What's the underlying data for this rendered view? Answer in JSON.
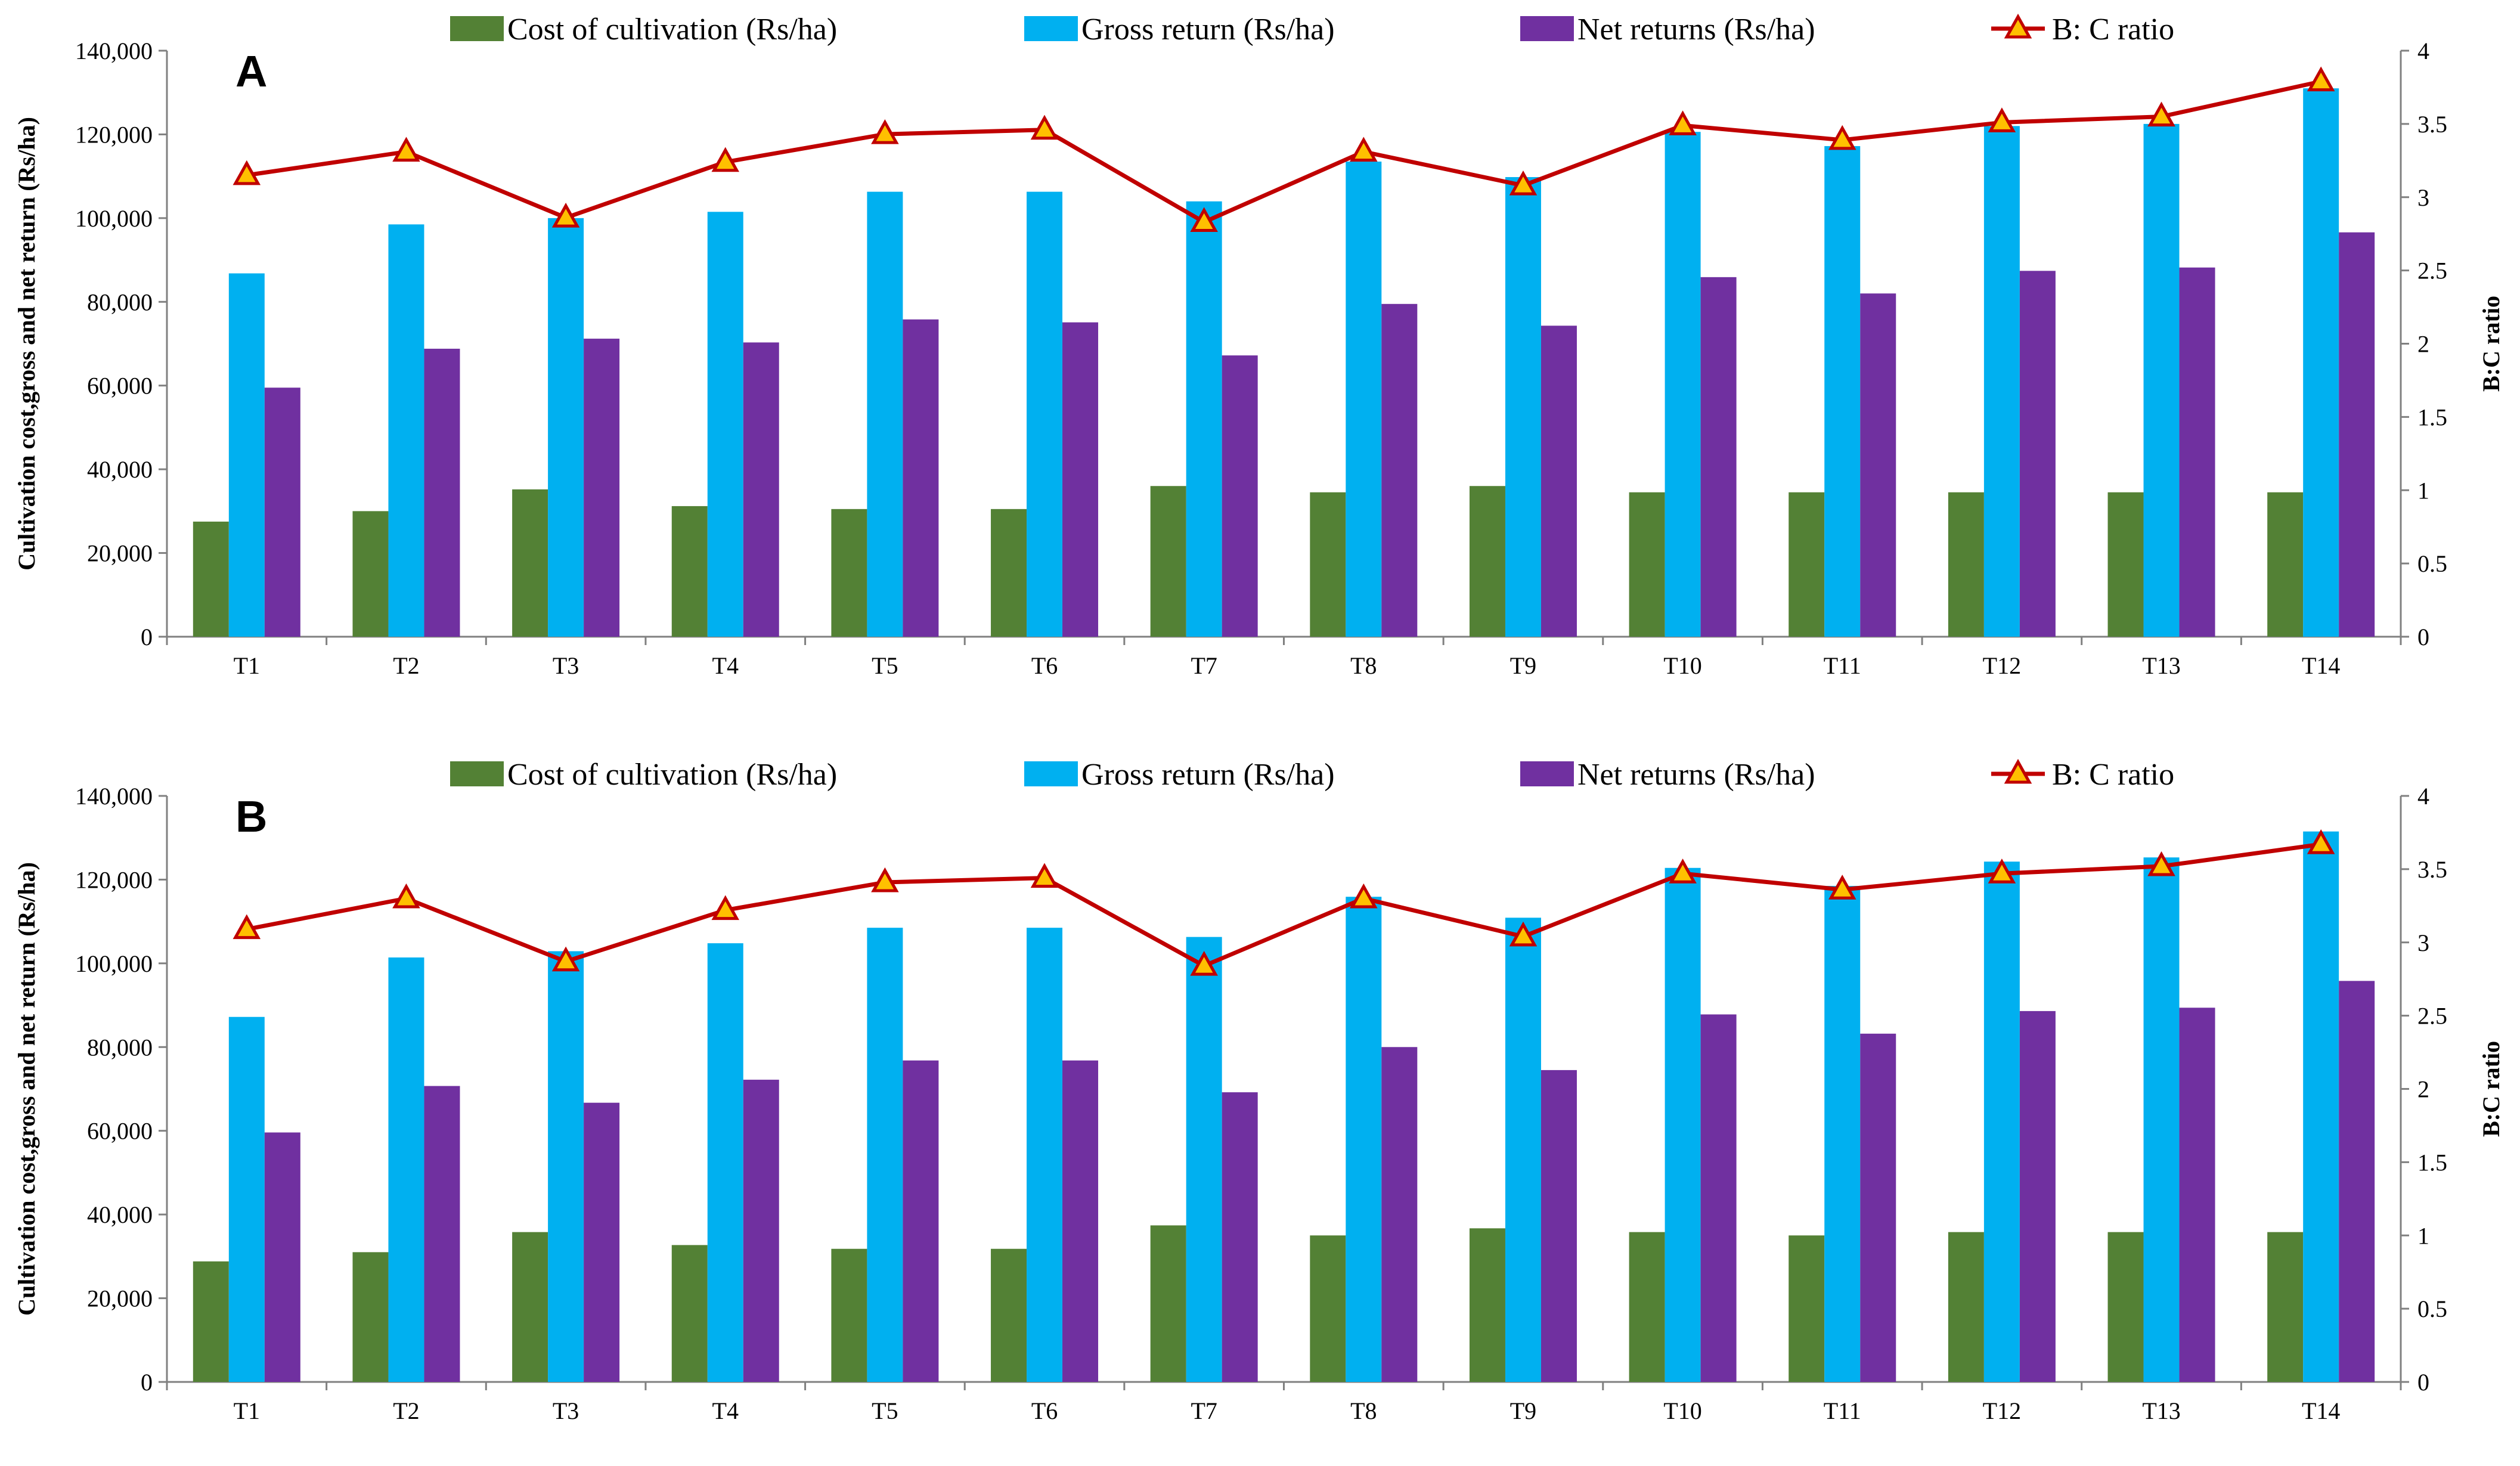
{
  "colors": {
    "cost": "#538135",
    "gross": "#00b0f0",
    "net": "#7030a0",
    "ratio_line": "#c00000",
    "ratio_marker": "#ffc000"
  },
  "legend": [
    {
      "key": "cost",
      "label": "Cost of cultivation (Rs/ha)"
    },
    {
      "key": "gross",
      "label": "Gross return (Rs/ha)"
    },
    {
      "key": "net",
      "label": "Net returns (Rs/ha)"
    },
    {
      "key": "ratio",
      "label": "B: C ratio"
    }
  ],
  "chart_data": [
    {
      "type": "bar",
      "panel_label": "A",
      "categories": [
        "T1",
        "T2",
        "T3",
        "T4",
        "T5",
        "T6",
        "T7",
        "T8",
        "T9",
        "T10",
        "T11",
        "T12",
        "T13",
        "T14"
      ],
      "series": [
        {
          "name": "Cost of cultivation (Rs/ha)",
          "key": "cost",
          "axis": "left",
          "values": [
            27500,
            30000,
            35200,
            31200,
            30500,
            30500,
            36000,
            34500,
            36000,
            34500,
            34500,
            34500,
            34500,
            34500
          ]
        },
        {
          "name": "Gross return (Rs/ha)",
          "key": "gross",
          "axis": "left",
          "values": [
            86800,
            98500,
            100000,
            101500,
            106300,
            106300,
            104000,
            113500,
            109800,
            120600,
            117200,
            122000,
            122500,
            131000
          ]
        },
        {
          "name": "Net returns (Rs/ha)",
          "key": "net",
          "axis": "left",
          "values": [
            59500,
            68800,
            71200,
            70300,
            75800,
            75100,
            67200,
            79500,
            74300,
            85900,
            82000,
            87400,
            88200,
            96600
          ]
        },
        {
          "name": "B: C ratio",
          "key": "ratio",
          "axis": "right",
          "type": "line",
          "values": [
            3.15,
            3.31,
            2.86,
            3.24,
            3.43,
            3.46,
            2.83,
            3.31,
            3.08,
            3.49,
            3.39,
            3.51,
            3.55,
            3.79
          ]
        }
      ],
      "ylabel": "Cultivation cost,gross and net return (Rs/ha)",
      "y2label": "B:C ratio",
      "ylim": [
        0,
        140000
      ],
      "y2lim": [
        0,
        4
      ],
      "yticks": [
        "0",
        "20,000",
        "40,000",
        "60,000",
        "80,000",
        "100,000",
        "120,000",
        "140,000"
      ],
      "y2ticks": [
        "0",
        "0.5",
        "1",
        "1.5",
        "2",
        "2.5",
        "3",
        "3.5",
        "4"
      ],
      "legend_position": "top"
    },
    {
      "type": "bar",
      "panel_label": "B",
      "categories": [
        "T1",
        "T2",
        "T3",
        "T4",
        "T5",
        "T6",
        "T7",
        "T8",
        "T9",
        "T10",
        "T11",
        "T12",
        "T13",
        "T14"
      ],
      "series": [
        {
          "name": "Cost of cultivation (Rs/ha)",
          "key": "cost",
          "axis": "left",
          "values": [
            28800,
            31000,
            35800,
            32700,
            31800,
            31800,
            37400,
            35000,
            36700,
            35800,
            35000,
            35800,
            35800,
            35800
          ]
        },
        {
          "name": "Gross return (Rs/ha)",
          "key": "gross",
          "axis": "left",
          "values": [
            87200,
            101400,
            102900,
            104800,
            108500,
            108500,
            106300,
            115900,
            110900,
            122800,
            118500,
            124300,
            125300,
            131500
          ]
        },
        {
          "name": "Net returns (Rs/ha)",
          "key": "net",
          "axis": "left",
          "values": [
            59600,
            70700,
            66700,
            72200,
            76800,
            76800,
            69200,
            80000,
            74500,
            87800,
            83200,
            88600,
            89400,
            95800
          ]
        },
        {
          "name": "B: C ratio",
          "key": "ratio",
          "axis": "right",
          "type": "line",
          "values": [
            3.09,
            3.3,
            2.87,
            3.22,
            3.41,
            3.44,
            2.84,
            3.3,
            3.04,
            3.47,
            3.36,
            3.47,
            3.52,
            3.67
          ]
        }
      ],
      "ylabel": "Cultivation cost,gross and net return (Rs/ha)",
      "y2label": "B:C ratio",
      "ylim": [
        0,
        140000
      ],
      "y2lim": [
        0,
        4
      ],
      "yticks": [
        "0",
        "20,000",
        "40,000",
        "60,000",
        "80,000",
        "100,000",
        "120,000",
        "140,000"
      ],
      "y2ticks": [
        "0",
        "0.5",
        "1",
        "1.5",
        "2",
        "2.5",
        "3",
        "3.5",
        "4"
      ],
      "legend_position": "top"
    }
  ]
}
